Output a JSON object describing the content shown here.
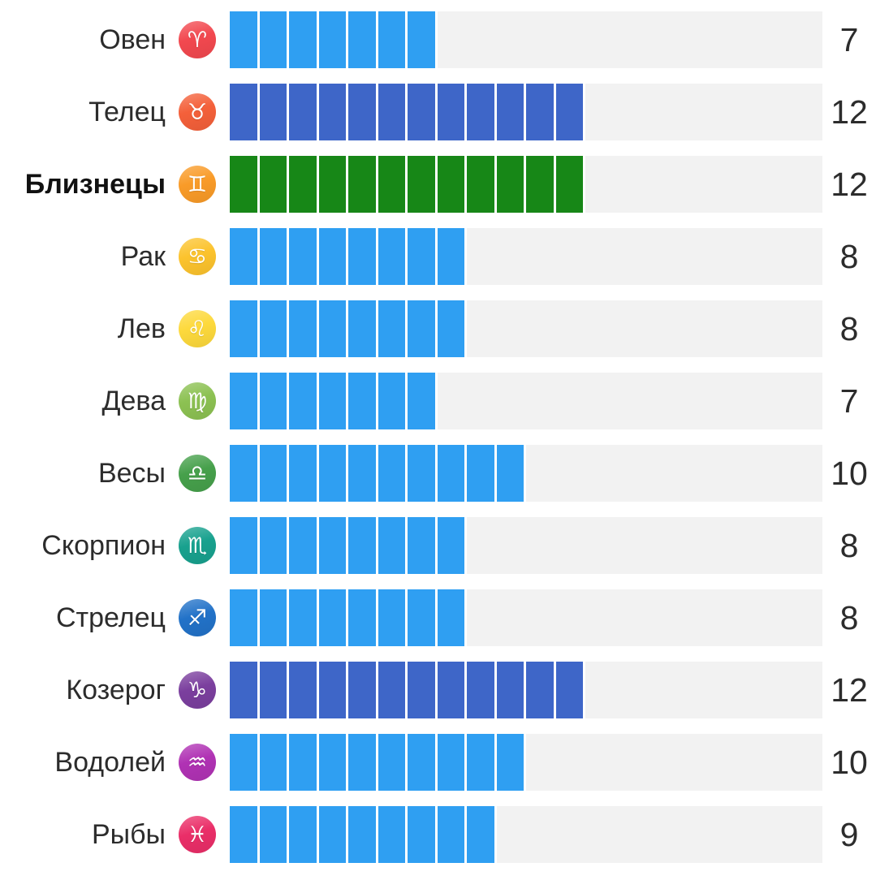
{
  "page": {
    "background": "#ffffff",
    "text_color": "#2c2c2c"
  },
  "chart_data": {
    "type": "bar",
    "orientation": "horizontal",
    "title": "",
    "max_units": 20,
    "track_color": "#f2f2f2",
    "default_bar_color": "#2f9ff2",
    "highlight_bar_color": "#178717",
    "strong_bar_color": "#3e66c8",
    "categories": [
      "Овен",
      "Телец",
      "Близнецы",
      "Рак",
      "Лев",
      "Дева",
      "Весы",
      "Скорпион",
      "Стрелец",
      "Козерог",
      "Водолей",
      "Рыбы"
    ],
    "values": [
      7,
      12,
      12,
      8,
      8,
      7,
      10,
      8,
      8,
      12,
      10,
      9
    ],
    "rows": [
      {
        "label": "Овен",
        "icon_name": "aries-icon",
        "glyph": "♈",
        "icon_color": "#f2484f",
        "value": 7,
        "bar_color": "#2f9ff2",
        "selected": false
      },
      {
        "label": "Телец",
        "icon_name": "taurus-icon",
        "glyph": "♉",
        "icon_color": "#f4603a",
        "value": 12,
        "bar_color": "#3e66c8",
        "selected": false
      },
      {
        "label": "Близнецы",
        "icon_name": "gemini-icon",
        "glyph": "♊",
        "icon_color": "#f99b28",
        "value": 12,
        "bar_color": "#178717",
        "selected": true
      },
      {
        "label": "Рак",
        "icon_name": "cancer-icon",
        "glyph": "♋",
        "icon_color": "#fcc32d",
        "value": 8,
        "bar_color": "#2f9ff2",
        "selected": false
      },
      {
        "label": "Лев",
        "icon_name": "leo-icon",
        "glyph": "♌",
        "icon_color": "#fdd93c",
        "value": 8,
        "bar_color": "#2f9ff2",
        "selected": false
      },
      {
        "label": "Дева",
        "icon_name": "virgo-icon",
        "glyph": "♍",
        "icon_color": "#8cc152",
        "value": 7,
        "bar_color": "#2f9ff2",
        "selected": false
      },
      {
        "label": "Весы",
        "icon_name": "libra-icon",
        "glyph": "♎",
        "icon_color": "#46a04b",
        "value": 10,
        "bar_color": "#2f9ff2",
        "selected": false
      },
      {
        "label": "Скорпион",
        "icon_name": "scorpio-icon",
        "glyph": "♏",
        "icon_color": "#18a18e",
        "value": 8,
        "bar_color": "#2f9ff2",
        "selected": false
      },
      {
        "label": "Стрелец",
        "icon_name": "sagittarius-icon",
        "glyph": "♐",
        "icon_color": "#2272c8",
        "value": 8,
        "bar_color": "#2f9ff2",
        "selected": false
      },
      {
        "label": "Козерог",
        "icon_name": "capricorn-icon",
        "glyph": "♑",
        "icon_color": "#7b3f9e",
        "value": 12,
        "bar_color": "#3e66c8",
        "selected": false
      },
      {
        "label": "Водолей",
        "icon_name": "aquarius-icon",
        "glyph": "♒",
        "icon_color": "#b032b4",
        "value": 10,
        "bar_color": "#2f9ff2",
        "selected": false
      },
      {
        "label": "Рыбы",
        "icon_name": "pisces-icon",
        "glyph": "♓",
        "icon_color": "#ea2e68",
        "value": 9,
        "bar_color": "#2f9ff2",
        "selected": false
      }
    ]
  }
}
